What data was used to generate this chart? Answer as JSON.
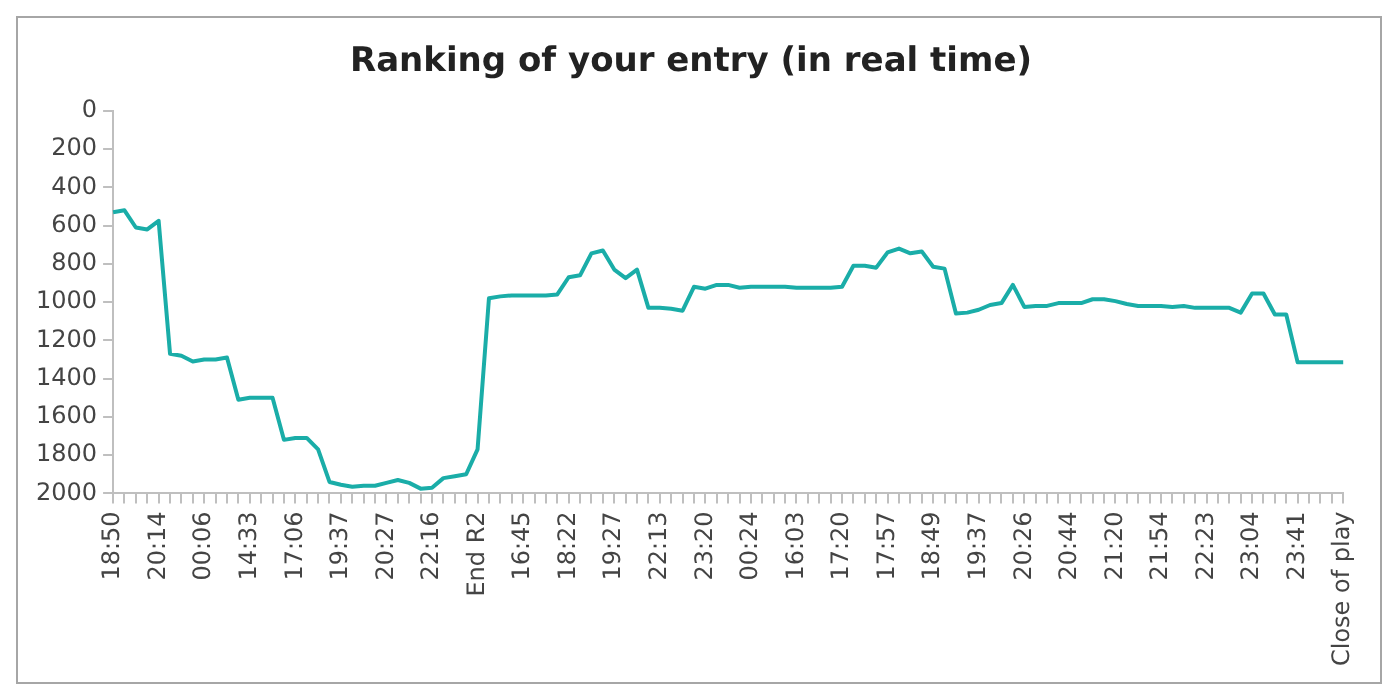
{
  "chart_data": {
    "type": "line",
    "title": "Ranking of your entry (in real time)",
    "categories": [
      "18:50",
      null,
      null,
      null,
      "20:14",
      null,
      null,
      null,
      "00:06",
      null,
      null,
      null,
      "14:33",
      null,
      null,
      null,
      "17:06",
      null,
      null,
      null,
      "19:37",
      null,
      null,
      null,
      "20:27",
      null,
      null,
      null,
      "22:16",
      null,
      null,
      null,
      "End R2",
      null,
      null,
      null,
      "16:45",
      null,
      null,
      null,
      "18:22",
      null,
      null,
      null,
      "19:27",
      null,
      null,
      null,
      "22:13",
      null,
      null,
      null,
      "23:20",
      null,
      null,
      null,
      "00:24",
      null,
      null,
      null,
      "16:03",
      null,
      null,
      null,
      "17:20",
      null,
      null,
      null,
      "17:57",
      null,
      null,
      null,
      "18:49",
      null,
      null,
      null,
      "19:37",
      null,
      null,
      null,
      "20:26",
      null,
      null,
      null,
      "20:44",
      null,
      null,
      null,
      "21:20",
      null,
      null,
      null,
      "21:54",
      null,
      null,
      null,
      "22:23",
      null,
      null,
      null,
      "23:04",
      null,
      null,
      null,
      "23:41",
      null,
      null,
      null,
      "Close of play"
    ],
    "series": [
      {
        "color": "#1aada8",
        "values": [
          530,
          520,
          610,
          620,
          575,
          1270,
          1280,
          1310,
          1300,
          1300,
          1290,
          1510,
          1500,
          1500,
          1500,
          1720,
          1710,
          1710,
          1770,
          1940,
          1955,
          1965,
          1960,
          1960,
          1945,
          1930,
          1945,
          1975,
          1970,
          1920,
          1910,
          1900,
          1770,
          980,
          970,
          965,
          965,
          965,
          965,
          960,
          870,
          860,
          745,
          730,
          830,
          875,
          830,
          1030,
          1030,
          1035,
          1045,
          920,
          930,
          910,
          910,
          925,
          920,
          920,
          920,
          920,
          925,
          925,
          925,
          925,
          920,
          810,
          810,
          820,
          740,
          720,
          745,
          735,
          815,
          825,
          1060,
          1055,
          1040,
          1015,
          1005,
          910,
          1025,
          1020,
          1020,
          1005,
          1005,
          1005,
          985,
          985,
          995,
          1010,
          1020,
          1020,
          1020,
          1025,
          1020,
          1030,
          1030,
          1030,
          1030,
          1055,
          955,
          955,
          1065,
          1065,
          1315,
          1315,
          1315,
          1315,
          1315
        ]
      }
    ],
    "ylim": [
      2000,
      0
    ],
    "yticks": [
      0,
      200,
      400,
      600,
      800,
      1000,
      1200,
      1400,
      1600,
      1800,
      2000
    ],
    "grid": false,
    "legend": false,
    "marker": "none",
    "line_style": "solid"
  }
}
